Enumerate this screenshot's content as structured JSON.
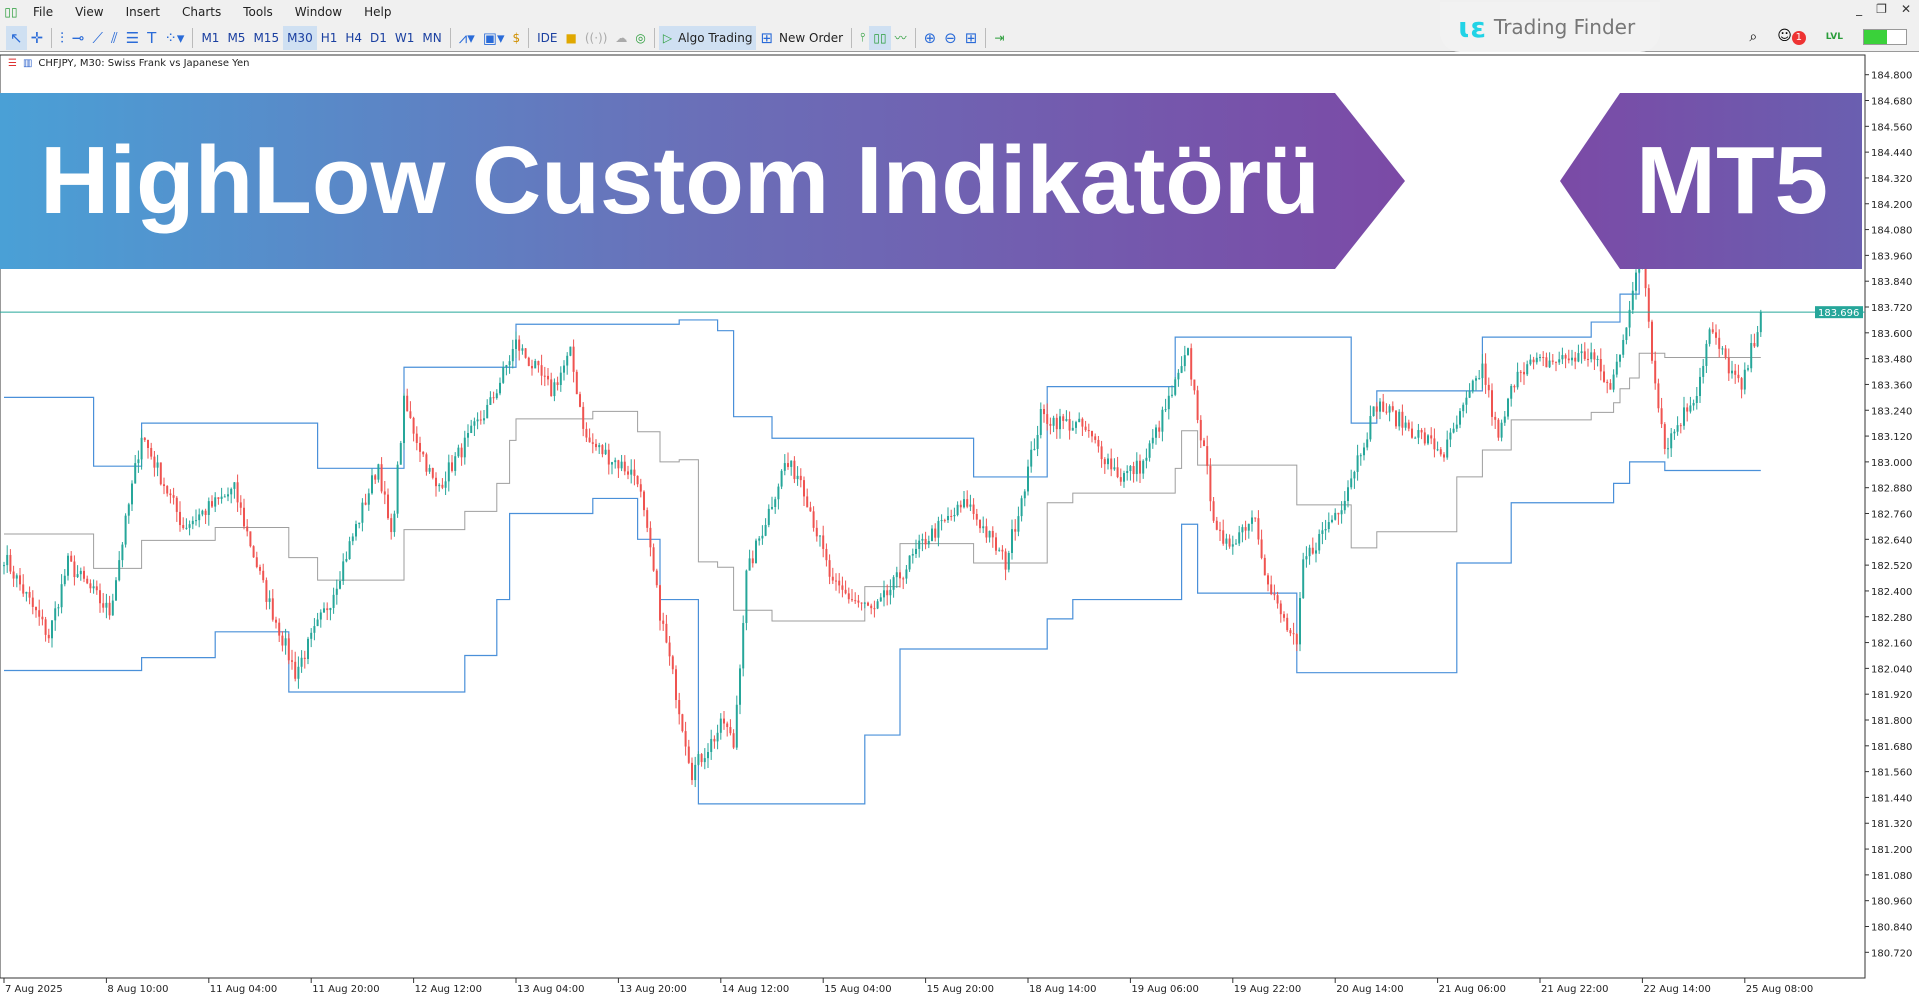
{
  "menu": {
    "items": [
      "File",
      "View",
      "Insert",
      "Charts",
      "Tools",
      "Window",
      "Help"
    ]
  },
  "toolbar": {
    "timeframes": [
      "M1",
      "M5",
      "M15",
      "M30",
      "H1",
      "H4",
      "D1",
      "W1",
      "MN"
    ],
    "active_timeframe": "M30",
    "ide": "IDE",
    "algo_trading": "Algo Trading",
    "new_order": "New Order"
  },
  "brand": {
    "name": "Trading Finder",
    "accent": "#22d3e6"
  },
  "notifications": {
    "count": "1"
  },
  "level_label": "LVL",
  "chart_header": "CHFJPY, M30:  Swiss Frank vs Japanese Yen",
  "banner": {
    "title": "HighLow Custom Indikatörü",
    "platform": "MT5"
  },
  "chart_data": {
    "type": "candlestick",
    "symbol": "CHFJPY",
    "timeframe": "M30",
    "current_price": "183.696",
    "ylim": [
      180.66,
      184.86
    ],
    "y_ticks": [
      "184.800",
      "184.680",
      "184.560",
      "184.440",
      "184.320",
      "184.200",
      "184.080",
      "183.960",
      "183.840",
      "183.720",
      "183.600",
      "183.480",
      "183.360",
      "183.240",
      "183.120",
      "183.000",
      "182.880",
      "182.760",
      "182.640",
      "182.520",
      "182.400",
      "182.280",
      "182.160",
      "182.040",
      "181.920",
      "181.800",
      "181.680",
      "181.560",
      "181.440",
      "181.320",
      "181.200",
      "181.080",
      "180.960",
      "180.840",
      "180.720"
    ],
    "x_ticks": [
      "7 Aug 2025",
      "8 Aug 10:00",
      "11 Aug 04:00",
      "11 Aug 20:00",
      "12 Aug 12:00",
      "13 Aug 04:00",
      "13 Aug 20:00",
      "14 Aug 12:00",
      "15 Aug 04:00",
      "15 Aug 20:00",
      "18 Aug 14:00",
      "19 Aug 06:00",
      "19 Aug 22:00",
      "20 Aug 14:00",
      "21 Aug 06:00",
      "21 Aug 22:00",
      "22 Aug 14:00",
      "25 Aug 08:00"
    ],
    "bars_per_x_tick": 32,
    "close_path": [
      [
        0,
        182.56
      ],
      [
        14,
        182.19
      ],
      [
        20,
        182.53
      ],
      [
        33,
        182.3
      ],
      [
        43,
        183.13
      ],
      [
        56,
        182.7
      ],
      [
        72,
        182.87
      ],
      [
        81,
        182.42
      ],
      [
        91,
        182.02
      ],
      [
        102,
        182.36
      ],
      [
        117,
        182.99
      ],
      [
        121,
        182.64
      ],
      [
        125,
        183.27
      ],
      [
        135,
        182.87
      ],
      [
        152,
        183.27
      ],
      [
        160,
        183.55
      ],
      [
        171,
        183.33
      ],
      [
        177,
        183.5
      ],
      [
        182,
        183.1
      ],
      [
        198,
        182.93
      ],
      [
        205,
        182.3
      ],
      [
        215,
        181.56
      ],
      [
        225,
        181.79
      ],
      [
        228,
        181.68
      ],
      [
        232,
        182.47
      ],
      [
        244,
        182.99
      ],
      [
        249,
        182.93
      ],
      [
        259,
        182.42
      ],
      [
        272,
        182.3
      ],
      [
        288,
        182.64
      ],
      [
        301,
        182.81
      ],
      [
        313,
        182.53
      ],
      [
        324,
        183.21
      ],
      [
        337,
        183.16
      ],
      [
        349,
        182.93
      ],
      [
        356,
        182.99
      ],
      [
        370,
        183.5
      ],
      [
        378,
        182.76
      ],
      [
        381,
        182.59
      ],
      [
        391,
        182.76
      ],
      [
        395,
        182.42
      ],
      [
        404,
        182.13
      ],
      [
        406,
        182.53
      ],
      [
        418,
        182.81
      ],
      [
        429,
        183.27
      ],
      [
        450,
        183.04
      ],
      [
        462,
        183.44
      ],
      [
        467,
        183.1
      ],
      [
        473,
        183.44
      ],
      [
        496,
        183.5
      ],
      [
        502,
        183.33
      ],
      [
        512,
        183.98
      ],
      [
        515,
        183.5
      ],
      [
        519,
        183.07
      ],
      [
        529,
        183.33
      ],
      [
        533,
        183.61
      ],
      [
        543,
        183.33
      ],
      [
        549,
        183.696
      ]
    ],
    "high_line": [
      [
        0,
        183.3
      ],
      [
        28,
        182.98
      ],
      [
        43,
        183.18
      ],
      [
        98,
        182.97
      ],
      [
        125,
        183.44
      ],
      [
        160,
        183.64
      ],
      [
        211,
        183.66
      ],
      [
        223,
        183.61
      ],
      [
        228,
        183.21
      ],
      [
        240,
        183.11
      ],
      [
        303,
        182.93
      ],
      [
        326,
        183.35
      ],
      [
        366,
        183.58
      ],
      [
        421,
        183.18
      ],
      [
        429,
        183.33
      ],
      [
        462,
        183.58
      ],
      [
        496,
        183.65
      ],
      [
        505,
        183.78
      ],
      [
        511,
        184.01
      ]
    ],
    "low_line": [
      [
        0,
        182.03
      ],
      [
        43,
        182.09
      ],
      [
        66,
        182.21
      ],
      [
        89,
        181.93
      ],
      [
        144,
        182.1
      ],
      [
        154,
        182.36
      ],
      [
        158,
        182.76
      ],
      [
        184,
        182.83
      ],
      [
        198,
        182.64
      ],
      [
        205,
        182.36
      ],
      [
        217,
        181.41
      ],
      [
        269,
        181.73
      ],
      [
        280,
        182.13
      ],
      [
        326,
        182.27
      ],
      [
        334,
        182.36
      ],
      [
        368,
        182.71
      ],
      [
        373,
        182.39
      ],
      [
        404,
        182.02
      ],
      [
        454,
        182.53
      ],
      [
        471,
        182.81
      ],
      [
        503,
        182.9
      ],
      [
        508,
        183.0
      ],
      [
        519,
        182.96
      ]
    ],
    "colors": {
      "bull": "#26a69a",
      "bear": "#ef5350",
      "channel": "#4a90d9",
      "middle": "#9e9e9e",
      "price_line": "#26a69a"
    }
  }
}
